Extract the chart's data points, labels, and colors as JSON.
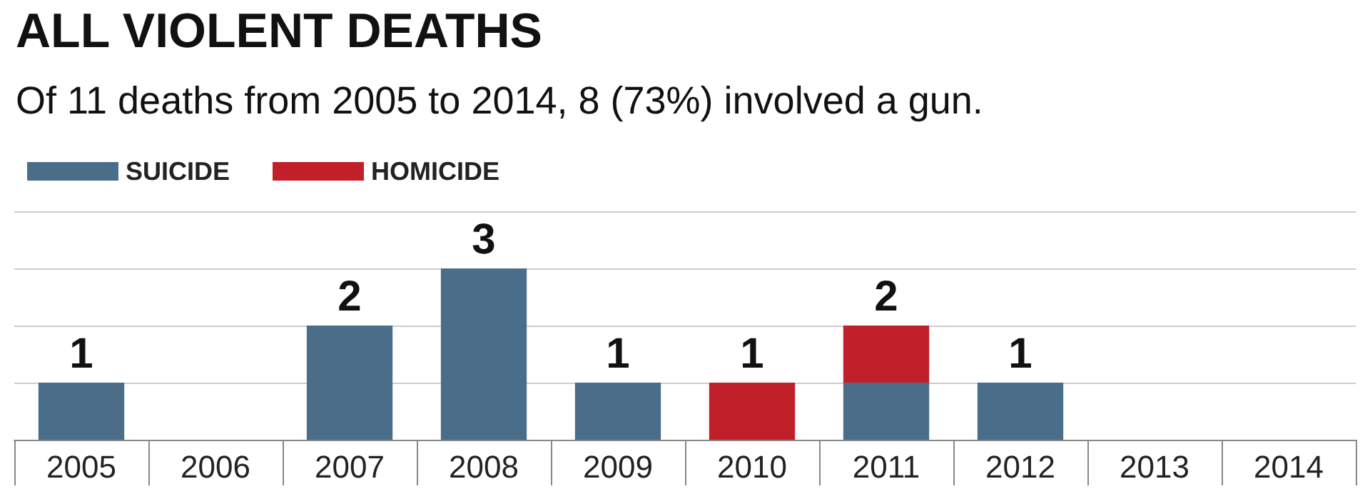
{
  "chart_data": {
    "type": "bar",
    "title": "ALL VIOLENT DEATHS",
    "subtitle": "Of 11 deaths from 2005 to 2014, 8 (73%) involved a gun.",
    "stacked": true,
    "categories": [
      "2005",
      "2006",
      "2007",
      "2008",
      "2009",
      "2010",
      "2011",
      "2012",
      "2013",
      "2014"
    ],
    "series": [
      {
        "name": "SUICIDE",
        "color": "#4a6d89",
        "values": [
          1,
          null,
          2,
          3,
          1,
          null,
          1,
          1,
          null,
          null
        ],
        "value_labels": [
          "1",
          null,
          "2",
          "3",
          "1",
          null,
          null,
          "1",
          null,
          null
        ]
      },
      {
        "name": "HOMICIDE",
        "color": "#c1202b",
        "values": [
          null,
          null,
          null,
          null,
          null,
          1,
          1,
          null,
          null,
          null
        ],
        "value_labels": [
          null,
          null,
          null,
          null,
          null,
          "1",
          null,
          null,
          null,
          null
        ]
      }
    ],
    "totals": [
      null,
      null,
      null,
      null,
      null,
      null,
      "2",
      null,
      null,
      null
    ],
    "ylim": [
      0,
      4
    ],
    "yticks": [
      {
        "value": 0,
        "label": null
      },
      {
        "value": 1,
        "label": null
      },
      {
        "value": 2,
        "label": null
      },
      {
        "value": 3,
        "label": null
      },
      {
        "value": 4,
        "label": null
      }
    ],
    "tick_labels": "x",
    "grid": "y",
    "legend": "top left"
  }
}
